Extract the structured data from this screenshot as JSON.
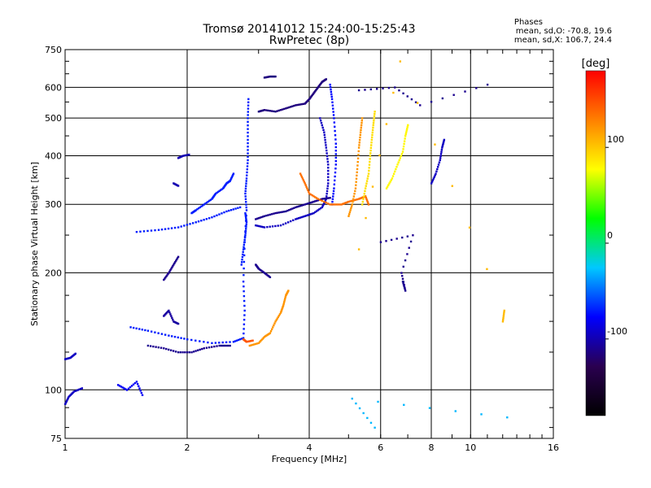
{
  "header": {
    "title": "Tromsø 20141012 15:24:00-15:25:43",
    "subtitle": "RwPretec (8p)"
  },
  "stats": {
    "heading": "Phases",
    "line_o": "mean, sd,O: -70.8, 19.6",
    "line_x": "mean, sd,X: 106.7, 24.4"
  },
  "colors": {
    "colormap": [
      "#000000",
      "#2a0050",
      "#0000ff",
      "#00c8ff",
      "#00ff00",
      "#ffff00",
      "#ff8000",
      "#ff0000"
    ]
  },
  "chart_data": {
    "type": "scatter",
    "xlabel": "Frequency [MHz]",
    "ylabel": "Stationary phase Virtual Height [km]",
    "xscale": "log",
    "yscale": "log",
    "xlim": [
      1,
      16
    ],
    "ylim": [
      75,
      750
    ],
    "xticks": [
      1,
      2,
      4,
      6,
      8,
      10,
      16
    ],
    "xtick_labels": [
      "1",
      "2",
      "4",
      "6",
      "8",
      "10",
      "16"
    ],
    "xgrid": [
      2,
      4,
      6,
      8,
      10
    ],
    "yticks": [
      75,
      100,
      200,
      300,
      400,
      500,
      600,
      750
    ],
    "ytick_labels": [
      "75",
      "100",
      "200",
      "300",
      "400",
      "500",
      "600",
      "750"
    ],
    "ygrid": [
      100,
      200,
      300,
      400,
      500,
      600
    ],
    "grid": true,
    "colorbar": {
      "label": "[deg]",
      "range": [
        -180,
        180
      ],
      "ticks": [
        -100,
        0,
        100
      ],
      "tick_labels": [
        "-100",
        "0",
        "100"
      ]
    },
    "traces": [
      {
        "name": "",
        "phase": -95,
        "points": [
          [
            1.0,
            92
          ],
          [
            1.02,
            96
          ],
          [
            1.05,
            99
          ],
          [
            1.1,
            101
          ]
        ]
      },
      {
        "name": "",
        "phase": -95,
        "points": [
          [
            1.0,
            120
          ],
          [
            1.03,
            121
          ],
          [
            1.06,
            124
          ]
        ]
      },
      {
        "name": "",
        "phase": -80,
        "points": [
          [
            1.35,
            103
          ],
          [
            1.42,
            100
          ],
          [
            1.5,
            105
          ],
          [
            1.55,
            97
          ]
        ]
      },
      {
        "name": "",
        "phase": -70,
        "points": [
          [
            1.45,
            145
          ],
          [
            1.6,
            142
          ],
          [
            1.8,
            138
          ],
          [
            2.0,
            135
          ],
          [
            2.3,
            132
          ],
          [
            2.6,
            133
          ],
          [
            2.75,
            136
          ],
          [
            2.77,
            160
          ],
          [
            2.75,
            190
          ],
          [
            2.77,
            240
          ],
          [
            2.8,
            290
          ],
          [
            2.78,
            320
          ],
          [
            2.8,
            350
          ],
          [
            2.82,
            390
          ],
          [
            2.82,
            440
          ],
          [
            2.82,
            500
          ],
          [
            2.83,
            560
          ]
        ]
      },
      {
        "name": "",
        "phase": -110,
        "points": [
          [
            1.6,
            130
          ],
          [
            1.75,
            128
          ],
          [
            1.9,
            125
          ],
          [
            2.05,
            125
          ],
          [
            2.2,
            128
          ],
          [
            2.4,
            130
          ],
          [
            2.55,
            130
          ]
        ]
      },
      {
        "name": "",
        "phase": -110,
        "points": [
          [
            1.75,
            192
          ],
          [
            1.8,
            200
          ],
          [
            1.85,
            210
          ],
          [
            1.9,
            220
          ]
        ]
      },
      {
        "name": "",
        "phase": -105,
        "points": [
          [
            1.75,
            155
          ],
          [
            1.8,
            160
          ],
          [
            1.85,
            150
          ],
          [
            1.9,
            148
          ]
        ]
      },
      {
        "name": "",
        "phase": -70,
        "points": [
          [
            1.5,
            255
          ],
          [
            1.7,
            258
          ],
          [
            1.9,
            262
          ],
          [
            2.1,
            270
          ],
          [
            2.3,
            278
          ],
          [
            2.5,
            288
          ],
          [
            2.7,
            295
          ]
        ]
      },
      {
        "name": "",
        "phase": -100,
        "points": [
          [
            1.9,
            395
          ],
          [
            1.95,
            400
          ],
          [
            2.02,
            403
          ]
        ]
      },
      {
        "name": "",
        "phase": -100,
        "points": [
          [
            1.85,
            340
          ],
          [
            1.9,
            335
          ]
        ]
      },
      {
        "name": "",
        "phase": -70,
        "points": [
          [
            2.05,
            285
          ],
          [
            2.1,
            290
          ],
          [
            2.2,
            300
          ],
          [
            2.3,
            310
          ],
          [
            2.35,
            320
          ],
          [
            2.45,
            330
          ],
          [
            2.5,
            340
          ],
          [
            2.55,
            345
          ],
          [
            2.6,
            360
          ]
        ]
      },
      {
        "name": "",
        "phase": -70,
        "points": [
          [
            2.72,
            210
          ],
          [
            2.75,
            230
          ],
          [
            2.78,
            250
          ],
          [
            2.8,
            270
          ],
          [
            2.78,
            285
          ]
        ]
      },
      {
        "name": "",
        "phase": -115,
        "points": [
          [
            3.0,
            520
          ],
          [
            3.1,
            525
          ],
          [
            3.3,
            520
          ],
          [
            3.5,
            530
          ],
          [
            3.7,
            540
          ],
          [
            3.9,
            545
          ],
          [
            4.0,
            560
          ],
          [
            4.1,
            580
          ],
          [
            4.2,
            600
          ],
          [
            4.3,
            620
          ],
          [
            4.4,
            630
          ]
        ]
      },
      {
        "name": "",
        "phase": -115,
        "points": [
          [
            3.1,
            636
          ],
          [
            3.2,
            640
          ],
          [
            3.3,
            640
          ]
        ]
      },
      {
        "name": "",
        "phase": -95,
        "points": [
          [
            4.25,
            500
          ],
          [
            4.35,
            460
          ],
          [
            4.4,
            420
          ],
          [
            4.45,
            380
          ],
          [
            4.45,
            340
          ],
          [
            4.4,
            310
          ],
          [
            4.3,
            295
          ],
          [
            4.1,
            285
          ],
          [
            3.9,
            280
          ],
          [
            3.7,
            275
          ],
          [
            3.4,
            265
          ],
          [
            3.1,
            262
          ],
          [
            2.95,
            265
          ]
        ]
      },
      {
        "name": "",
        "phase": -75,
        "points": [
          [
            4.5,
            610
          ],
          [
            4.55,
            560
          ],
          [
            4.6,
            500
          ],
          [
            4.65,
            430
          ],
          [
            4.65,
            380
          ],
          [
            4.6,
            330
          ],
          [
            4.55,
            300
          ]
        ]
      },
      {
        "name": "",
        "phase": -110,
        "points": [
          [
            2.95,
            275
          ],
          [
            3.1,
            280
          ],
          [
            3.3,
            285
          ],
          [
            3.5,
            288
          ],
          [
            3.7,
            295
          ],
          [
            3.9,
            300
          ],
          [
            4.1,
            305
          ],
          [
            4.3,
            310
          ],
          [
            4.5,
            312
          ]
        ]
      },
      {
        "name": "",
        "phase": -110,
        "points": [
          [
            2.95,
            210
          ],
          [
            3.0,
            205
          ],
          [
            3.1,
            200
          ],
          [
            3.2,
            195
          ]
        ]
      },
      {
        "name": "",
        "phase": 120,
        "points": [
          [
            2.85,
            130
          ],
          [
            3.0,
            132
          ],
          [
            3.1,
            137
          ],
          [
            3.2,
            140
          ],
          [
            3.3,
            150
          ],
          [
            3.4,
            158
          ],
          [
            3.45,
            165
          ],
          [
            3.5,
            175
          ],
          [
            3.55,
            180
          ]
        ]
      },
      {
        "name": "",
        "phase": 145,
        "points": [
          [
            2.75,
            135
          ],
          [
            2.8,
            133
          ],
          [
            2.9,
            134
          ]
        ]
      },
      {
        "name": "",
        "phase": 135,
        "points": [
          [
            3.8,
            360
          ],
          [
            3.9,
            340
          ],
          [
            4.0,
            320
          ],
          [
            4.2,
            310
          ],
          [
            4.5,
            300
          ],
          [
            4.8,
            300
          ],
          [
            5.0,
            305
          ],
          [
            5.3,
            310
          ],
          [
            5.5,
            315
          ],
          [
            5.6,
            300
          ]
        ]
      },
      {
        "name": "",
        "phase": 120,
        "points": [
          [
            5.0,
            280
          ],
          [
            5.1,
            300
          ],
          [
            5.2,
            330
          ],
          [
            5.25,
            370
          ],
          [
            5.3,
            420
          ],
          [
            5.35,
            460
          ],
          [
            5.4,
            500
          ]
        ]
      },
      {
        "name": "",
        "phase": 90,
        "points": [
          [
            5.4,
            300
          ],
          [
            5.5,
            330
          ],
          [
            5.6,
            360
          ],
          [
            5.65,
            400
          ],
          [
            5.7,
            440
          ],
          [
            5.75,
            480
          ],
          [
            5.8,
            520
          ]
        ]
      },
      {
        "name": "",
        "phase": 80,
        "points": [
          [
            6.2,
            330
          ],
          [
            6.4,
            350
          ],
          [
            6.6,
            380
          ],
          [
            6.8,
            410
          ],
          [
            6.9,
            450
          ],
          [
            7.0,
            480
          ]
        ]
      },
      {
        "name": "",
        "phase": -95,
        "points": [
          [
            8.0,
            340
          ],
          [
            8.2,
            360
          ],
          [
            8.4,
            390
          ],
          [
            8.5,
            420
          ],
          [
            8.6,
            440
          ]
        ]
      },
      {
        "name": "",
        "phase": -110,
        "points": [
          [
            5.3,
            590
          ],
          [
            6.5,
            600
          ],
          [
            7.5,
            540
          ],
          [
            11.0,
            610
          ]
        ]
      },
      {
        "name": "",
        "phase": -110,
        "points": [
          [
            6.8,
            190
          ],
          [
            6.9,
            180
          ],
          [
            6.75,
            200
          ],
          [
            7.2,
            250
          ],
          [
            6.0,
            240
          ]
        ]
      },
      {
        "name": "",
        "phase": 105,
        "points": [
          [
            12.0,
            150
          ],
          [
            12.1,
            160
          ],
          [
            6.7,
            700
          ],
          [
            5.3,
            230
          ]
        ]
      },
      {
        "name": "",
        "phase": -30,
        "points": [
          [
            12.3,
            85
          ],
          [
            5.1,
            95
          ],
          [
            5.8,
            80
          ]
        ]
      }
    ]
  }
}
